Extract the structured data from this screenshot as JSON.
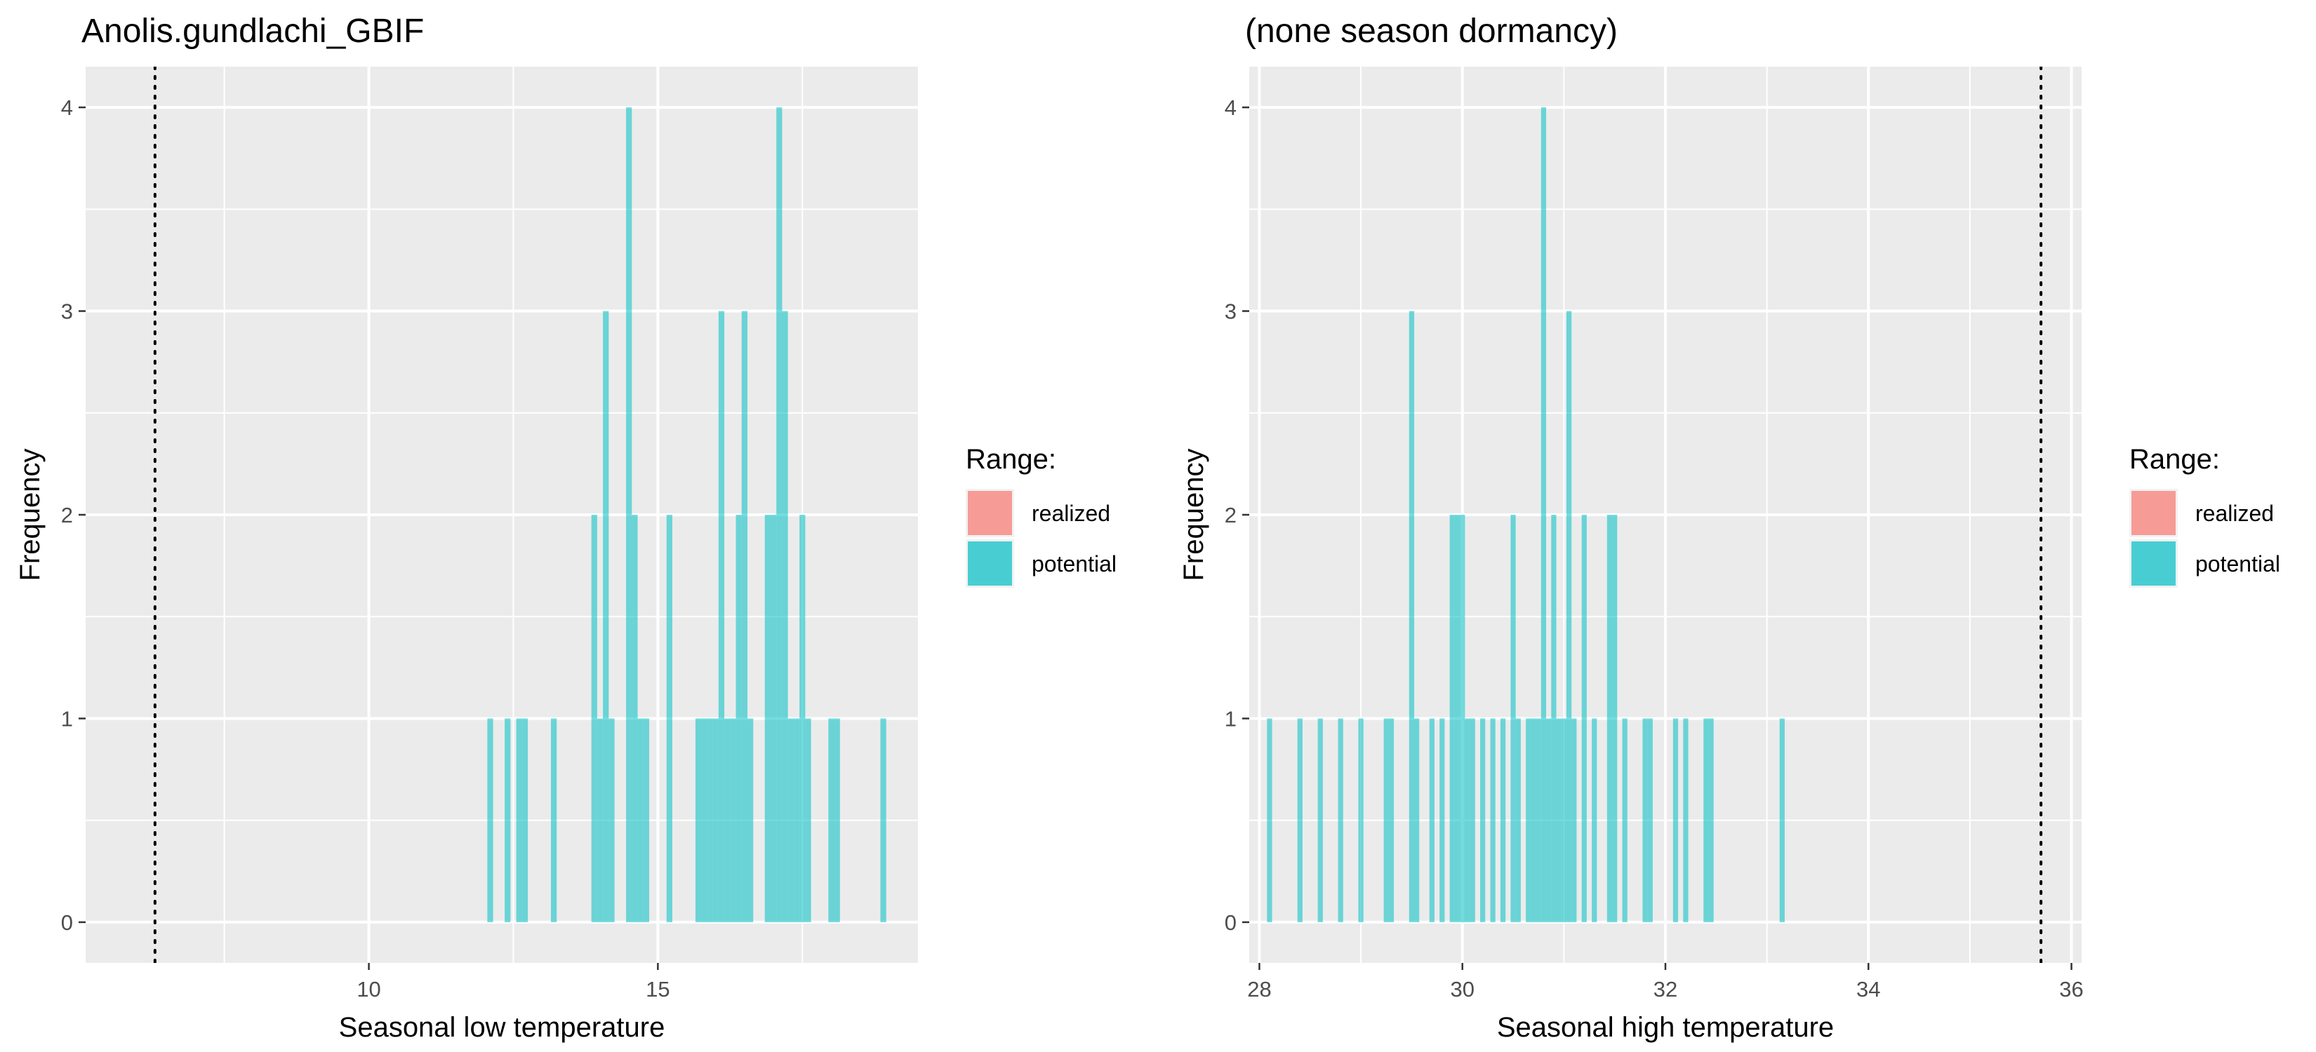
{
  "legend": {
    "title": "Range:",
    "items": [
      {
        "label": "realized",
        "color": "#F8766D"
      },
      {
        "label": "potential",
        "color": "#00BFC4"
      }
    ]
  },
  "chart_data": [
    {
      "type": "bar",
      "subtype": "histogram",
      "title": "Anolis.gundlachi_GBIF",
      "xlabel": "Seasonal low temperature",
      "ylabel": "Frequency",
      "xlim": [
        5.1,
        19.5
      ],
      "ylim": [
        -0.2,
        4.2
      ],
      "xticks": [
        10,
        15
      ],
      "yticks": [
        0,
        1,
        2,
        3,
        4
      ],
      "grid": true,
      "legend_position": "right",
      "bin_width": 0.1,
      "reference_line": {
        "x": 6.3,
        "style": "dotted"
      },
      "series": [
        {
          "name": "realized",
          "color": "#F8766D",
          "bins": []
        },
        {
          "name": "potential",
          "color": "#00BFC4",
          "bins": [
            {
              "x": 12.1,
              "y": 1
            },
            {
              "x": 12.4,
              "y": 1
            },
            {
              "x": 12.6,
              "y": 1
            },
            {
              "x": 12.7,
              "y": 1
            },
            {
              "x": 13.2,
              "y": 1
            },
            {
              "x": 13.9,
              "y": 2
            },
            {
              "x": 14.0,
              "y": 1
            },
            {
              "x": 14.1,
              "y": 3
            },
            {
              "x": 14.2,
              "y": 1
            },
            {
              "x": 14.5,
              "y": 4
            },
            {
              "x": 14.6,
              "y": 2
            },
            {
              "x": 14.7,
              "y": 1
            },
            {
              "x": 14.8,
              "y": 1
            },
            {
              "x": 15.2,
              "y": 2
            },
            {
              "x": 15.7,
              "y": 1
            },
            {
              "x": 15.8,
              "y": 1
            },
            {
              "x": 15.9,
              "y": 1
            },
            {
              "x": 16.0,
              "y": 1
            },
            {
              "x": 16.1,
              "y": 3
            },
            {
              "x": 16.2,
              "y": 1
            },
            {
              "x": 16.3,
              "y": 1
            },
            {
              "x": 16.4,
              "y": 2
            },
            {
              "x": 16.5,
              "y": 3
            },
            {
              "x": 16.6,
              "y": 1
            },
            {
              "x": 16.9,
              "y": 2
            },
            {
              "x": 17.0,
              "y": 2
            },
            {
              "x": 17.1,
              "y": 4
            },
            {
              "x": 17.2,
              "y": 3
            },
            {
              "x": 17.3,
              "y": 1
            },
            {
              "x": 17.4,
              "y": 1
            },
            {
              "x": 17.5,
              "y": 2
            },
            {
              "x": 17.6,
              "y": 1
            },
            {
              "x": 18.0,
              "y": 1
            },
            {
              "x": 18.1,
              "y": 1
            },
            {
              "x": 18.9,
              "y": 1
            }
          ]
        }
      ]
    },
    {
      "type": "bar",
      "subtype": "histogram",
      "title": "(none season dormancy)",
      "xlabel": "Seasonal high temperature",
      "ylabel": "Frequency",
      "xlim": [
        27.9,
        36.1
      ],
      "ylim": [
        -0.2,
        4.2
      ],
      "xticks": [
        28,
        30,
        32,
        34,
        36
      ],
      "yticks": [
        0,
        1,
        2,
        3,
        4
      ],
      "grid": true,
      "legend_position": "right",
      "bin_width": 0.05,
      "reference_line": {
        "x": 35.7,
        "style": "dotted"
      },
      "series": [
        {
          "name": "realized",
          "color": "#F8766D",
          "bins": []
        },
        {
          "name": "potential",
          "color": "#00BFC4",
          "bins": [
            {
              "x": 28.1,
              "y": 1
            },
            {
              "x": 28.4,
              "y": 1
            },
            {
              "x": 28.6,
              "y": 1
            },
            {
              "x": 28.8,
              "y": 1
            },
            {
              "x": 29.0,
              "y": 1
            },
            {
              "x": 29.25,
              "y": 1
            },
            {
              "x": 29.3,
              "y": 1
            },
            {
              "x": 29.5,
              "y": 3
            },
            {
              "x": 29.55,
              "y": 1
            },
            {
              "x": 29.7,
              "y": 1
            },
            {
              "x": 29.8,
              "y": 1
            },
            {
              "x": 29.9,
              "y": 2
            },
            {
              "x": 29.95,
              "y": 2
            },
            {
              "x": 30.0,
              "y": 2
            },
            {
              "x": 30.05,
              "y": 1
            },
            {
              "x": 30.1,
              "y": 1
            },
            {
              "x": 30.2,
              "y": 1
            },
            {
              "x": 30.3,
              "y": 1
            },
            {
              "x": 30.4,
              "y": 1
            },
            {
              "x": 30.5,
              "y": 2
            },
            {
              "x": 30.55,
              "y": 1
            },
            {
              "x": 30.65,
              "y": 1
            },
            {
              "x": 30.7,
              "y": 1
            },
            {
              "x": 30.75,
              "y": 1
            },
            {
              "x": 30.8,
              "y": 4
            },
            {
              "x": 30.85,
              "y": 1
            },
            {
              "x": 30.9,
              "y": 2
            },
            {
              "x": 30.95,
              "y": 1
            },
            {
              "x": 31.0,
              "y": 1
            },
            {
              "x": 31.05,
              "y": 3
            },
            {
              "x": 31.1,
              "y": 1
            },
            {
              "x": 31.2,
              "y": 2
            },
            {
              "x": 31.3,
              "y": 1
            },
            {
              "x": 31.45,
              "y": 2
            },
            {
              "x": 31.5,
              "y": 2
            },
            {
              "x": 31.6,
              "y": 1
            },
            {
              "x": 31.8,
              "y": 1
            },
            {
              "x": 31.85,
              "y": 1
            },
            {
              "x": 32.1,
              "y": 1
            },
            {
              "x": 32.2,
              "y": 1
            },
            {
              "x": 32.4,
              "y": 1
            },
            {
              "x": 32.45,
              "y": 1
            },
            {
              "x": 33.15,
              "y": 1
            }
          ]
        }
      ]
    }
  ]
}
